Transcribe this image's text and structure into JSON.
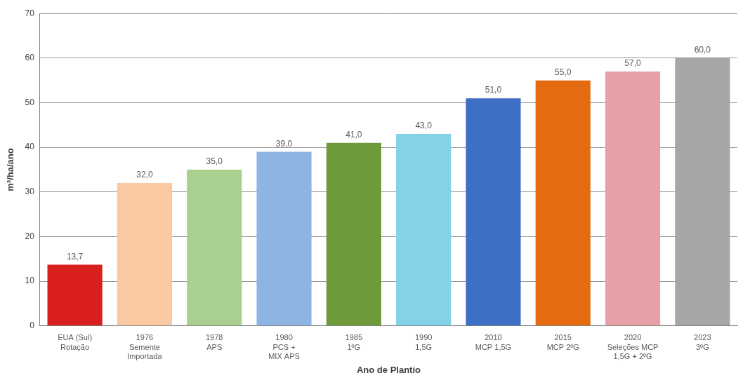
{
  "chart_data": {
    "type": "bar",
    "categories": [
      "EUA (Sul)\nRotação",
      "1976\nSemente\nImportada",
      "1978\nAPS",
      "1980\nPCS +\nMIX APS",
      "1985\n1ºG",
      "1990\n1,5G",
      "2010\nMCP 1,5G",
      "2015\nMCP 2ºG",
      "2020\nSeleções MCP\n1,5G + 2ºG",
      "2023\n3ºG"
    ],
    "values": [
      13.7,
      32.0,
      35.0,
      39.0,
      41.0,
      43.0,
      51.0,
      55.0,
      57.0,
      60.0
    ],
    "value_labels": [
      "13,7",
      "32,0",
      "35,0",
      "39,0",
      "41,0",
      "43,0",
      "51,0",
      "55,0",
      "57,0",
      "60,0"
    ],
    "colors": [
      "#d9201f",
      "#f8c9a2",
      "#a9d08e",
      "#8eb4e3",
      "#6e9a3a",
      "#84d2e8",
      "#3f6fc4",
      "#e56b10",
      "#e6a1a8",
      "#a6a6a6"
    ],
    "x_label": "Ano de Plantio",
    "y_label": "m³/ha/ano",
    "ylim": [
      0,
      70
    ],
    "yticks": [
      0,
      10,
      20,
      30,
      40,
      50,
      60,
      70
    ],
    "grid": true,
    "data_labels": true
  }
}
